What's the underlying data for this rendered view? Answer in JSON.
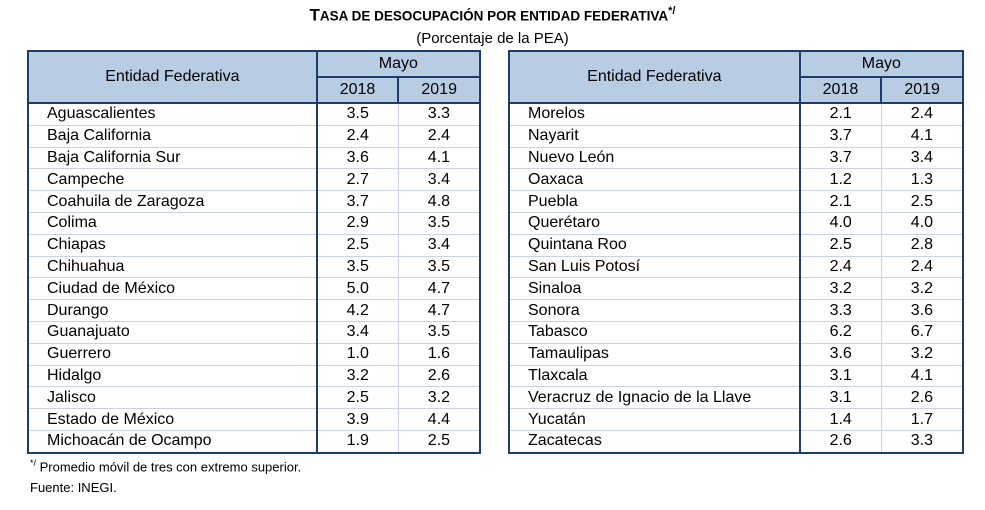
{
  "title": {
    "first": "T",
    "rest": "ASA DE DESOCUPACIÓN POR ENTIDAD FEDERATIVA",
    "mark": "*/"
  },
  "subtitle": "(Porcentaje de la PEA)",
  "headers": {
    "entity": "Entidad Federativa",
    "period": "Mayo",
    "y1": "2018",
    "y2": "2019"
  },
  "left_rows": [
    [
      "Aguascalientes",
      "3.5",
      "3.3"
    ],
    [
      "Baja California",
      "2.4",
      "2.4"
    ],
    [
      "Baja California Sur",
      "3.6",
      "4.1"
    ],
    [
      "Campeche",
      "2.7",
      "3.4"
    ],
    [
      "Coahuila de Zaragoza",
      "3.7",
      "4.8"
    ],
    [
      "Colima",
      "2.9",
      "3.5"
    ],
    [
      "Chiapas",
      "2.5",
      "3.4"
    ],
    [
      "Chihuahua",
      "3.5",
      "3.5"
    ],
    [
      "Ciudad de México",
      "5.0",
      "4.7"
    ],
    [
      "Durango",
      "4.2",
      "4.7"
    ],
    [
      "Guanajuato",
      "3.4",
      "3.5"
    ],
    [
      "Guerrero",
      "1.0",
      "1.6"
    ],
    [
      "Hidalgo",
      "3.2",
      "2.6"
    ],
    [
      "Jalisco",
      "2.5",
      "3.2"
    ],
    [
      "Estado de México",
      "3.9",
      "4.4"
    ],
    [
      "Michoacán de Ocampo",
      "1.9",
      "2.5"
    ]
  ],
  "right_rows": [
    [
      "Morelos",
      "2.1",
      "2.4"
    ],
    [
      "Nayarit",
      "3.7",
      "4.1"
    ],
    [
      "Nuevo León",
      "3.7",
      "3.4"
    ],
    [
      "Oaxaca",
      "1.2",
      "1.3"
    ],
    [
      "Puebla",
      "2.1",
      "2.5"
    ],
    [
      "Querétaro",
      "4.0",
      "4.0"
    ],
    [
      "Quintana Roo",
      "2.5",
      "2.8"
    ],
    [
      "San Luis Potosí",
      "2.4",
      "2.4"
    ],
    [
      "Sinaloa",
      "3.2",
      "3.2"
    ],
    [
      "Sonora",
      "3.3",
      "3.6"
    ],
    [
      "Tabasco",
      "6.2",
      "6.7"
    ],
    [
      "Tamaulipas",
      "3.6",
      "3.2"
    ],
    [
      "Tlaxcala",
      "3.1",
      "4.1"
    ],
    [
      "Veracruz de Ignacio de la Llave",
      "3.1",
      "2.6"
    ],
    [
      "Yucatán",
      "1.4",
      "1.7"
    ],
    [
      "Zacatecas",
      "2.6",
      "3.3"
    ]
  ],
  "footnote": {
    "mark": "*/",
    "text": " Promedio móvil de tres con extremo superior."
  },
  "source": "Fuente: INEGI.",
  "colors": {
    "header_fill": "#b8cce4",
    "border": "#1f3d6b"
  }
}
